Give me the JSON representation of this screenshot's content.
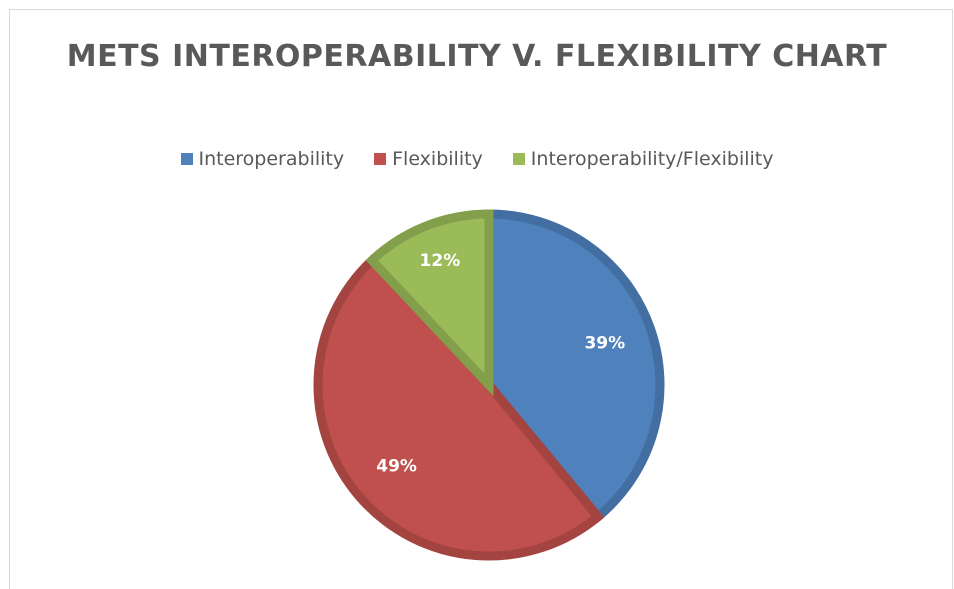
{
  "chart_data": {
    "type": "pie",
    "title": "METS INTEROPERABILITY V. FLEXIBILITY CHART",
    "categories": [
      "Interoperability",
      "Flexibility",
      "Interoperability/Flexibility"
    ],
    "values": [
      39,
      49,
      12
    ],
    "labels": [
      "39%",
      "49%",
      "12%"
    ],
    "colors": [
      "#4f81bd",
      "#c0504d",
      "#9bbb59"
    ],
    "legend": "top"
  }
}
